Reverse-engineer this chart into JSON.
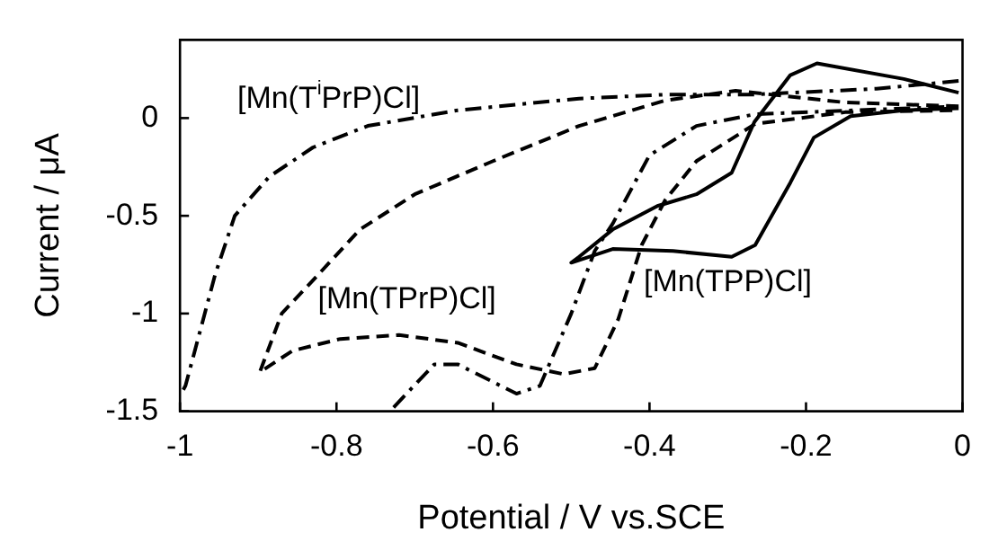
{
  "chart_data": {
    "type": "line",
    "xlabel": "Potential / V vs.SCE",
    "ylabel": "Current / μA",
    "xlim": [
      -1,
      0
    ],
    "xticks": [
      -1,
      -0.8,
      -0.6,
      -0.4,
      -0.2,
      0
    ],
    "ylim": [
      -1.5,
      0.4
    ],
    "yticks": [
      0,
      -0.5,
      -1,
      -1.5
    ],
    "grid": false,
    "legend": false,
    "marker": "none",
    "series": [
      {
        "name": "[Mn(TPP)Cl]",
        "color": "#000000",
        "line_style": "solid",
        "x": [
          -0.005,
          -0.075,
          -0.186,
          -0.22,
          -0.266,
          -0.295,
          -0.34,
          -0.39,
          -0.447,
          -0.49,
          -0.5,
          -0.447,
          -0.37,
          -0.295,
          -0.265,
          -0.22,
          -0.19,
          -0.143,
          -0.075,
          -0.005
        ],
        "values": [
          0.13,
          0.2,
          0.28,
          0.22,
          -0.02,
          -0.28,
          -0.39,
          -0.45,
          -0.57,
          -0.71,
          -0.74,
          -0.67,
          -0.68,
          -0.71,
          -0.65,
          -0.33,
          -0.1,
          0.01,
          0.04,
          0.05
        ]
      },
      {
        "name": "[Mn(TPrP)Cl]",
        "color": "#000000",
        "line_style": "dashed",
        "x": [
          -0.005,
          -0.15,
          -0.29,
          -0.38,
          -0.49,
          -0.6,
          -0.7,
          -0.77,
          -0.83,
          -0.87,
          -0.898,
          -0.856,
          -0.795,
          -0.72,
          -0.645,
          -0.57,
          -0.51,
          -0.47,
          -0.44,
          -0.41,
          -0.38,
          -0.34,
          -0.265,
          -0.15,
          -0.005
        ],
        "values": [
          0.06,
          0.08,
          0.14,
          0.09,
          -0.04,
          -0.22,
          -0.39,
          -0.57,
          -0.83,
          -1.0,
          -1.3,
          -1.19,
          -1.13,
          -1.11,
          -1.15,
          -1.26,
          -1.31,
          -1.28,
          -1.03,
          -0.65,
          -0.42,
          -0.22,
          -0.03,
          0.03,
          0.04
        ]
      },
      {
        "name": "[Mn(T$^{i}$PrP)Cl]",
        "color": "#000000",
        "line_style": "dashdot",
        "x": [
          -0.005,
          -0.11,
          -0.27,
          -0.38,
          -0.49,
          -0.645,
          -0.76,
          -0.83,
          -0.886,
          -0.93,
          -0.955,
          -0.993,
          -1,
          null,
          -0.727,
          -0.675,
          -0.645,
          -0.6,
          -0.57,
          -0.54,
          -0.5,
          -0.47,
          -0.447,
          -0.4,
          -0.34,
          -0.265,
          -0.005
        ],
        "values": [
          0.19,
          0.15,
          0.12,
          0.12,
          0.1,
          0.04,
          -0.04,
          -0.15,
          -0.3,
          -0.5,
          -0.8,
          -1.37,
          -1.42,
          null,
          -1.48,
          -1.26,
          -1.26,
          -1.35,
          -1.41,
          -1.37,
          -1.0,
          -0.68,
          -0.54,
          -0.19,
          -0.04,
          0.02,
          0.06
        ]
      }
    ]
  }
}
